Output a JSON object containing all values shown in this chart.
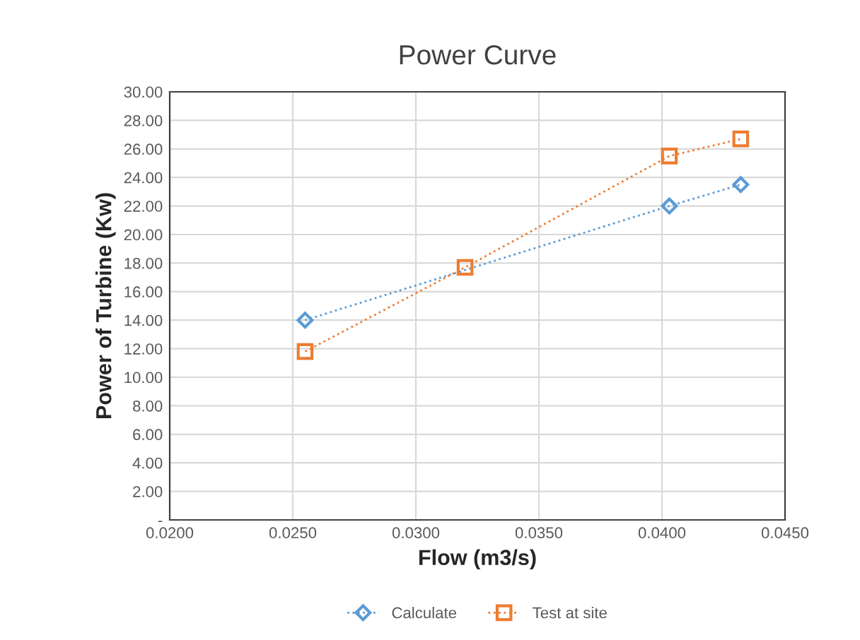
{
  "chart_data": {
    "type": "line",
    "title": "Power Curve",
    "xlabel": "Flow (m3/s)",
    "ylabel": "Power of Turbine (Kw)",
    "xlim": [
      0.02,
      0.045
    ],
    "xticks": [
      {
        "value": 0.02,
        "label": "0.0200"
      },
      {
        "value": 0.025,
        "label": "0.0250"
      },
      {
        "value": 0.03,
        "label": "0.0300"
      },
      {
        "value": 0.035,
        "label": "0.0350"
      },
      {
        "value": 0.04,
        "label": "0.0400"
      },
      {
        "value": 0.045,
        "label": "0.0450"
      }
    ],
    "ylim": [
      0,
      30
    ],
    "yticks": [
      {
        "value": 0,
        "label": "-"
      },
      {
        "value": 2,
        "label": "2.00"
      },
      {
        "value": 4,
        "label": "4.00"
      },
      {
        "value": 6,
        "label": "6.00"
      },
      {
        "value": 8,
        "label": "8.00"
      },
      {
        "value": 10,
        "label": "10.00"
      },
      {
        "value": 12,
        "label": "12.00"
      },
      {
        "value": 14,
        "label": "14.00"
      },
      {
        "value": 16,
        "label": "16.00"
      },
      {
        "value": 18,
        "label": "18.00"
      },
      {
        "value": 20,
        "label": "20.00"
      },
      {
        "value": 22,
        "label": "22.00"
      },
      {
        "value": 24,
        "label": "24.00"
      },
      {
        "value": 26,
        "label": "26.00"
      },
      {
        "value": 28,
        "label": "28.00"
      },
      {
        "value": 30,
        "label": "30.00"
      }
    ],
    "grid": true,
    "legend": "bottom",
    "line_style": "dotted",
    "series": [
      {
        "name": "Calculate",
        "color": "#5b9bd5",
        "marker": "diamond",
        "x": [
          0.0255,
          0.0403,
          0.0432
        ],
        "values": [
          14.0,
          22.0,
          23.5
        ]
      },
      {
        "name": "Test at site",
        "color": "#ed7d31",
        "marker": "square",
        "x": [
          0.0255,
          0.032,
          0.0403,
          0.0432
        ],
        "values": [
          11.8,
          17.7,
          25.5,
          26.7
        ]
      }
    ]
  }
}
